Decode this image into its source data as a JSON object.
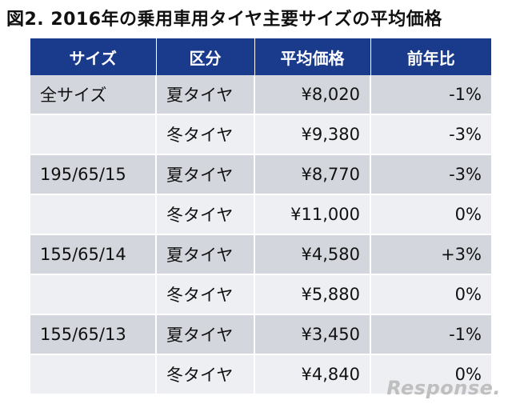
{
  "title": "図2. 2016年の乗用車用タイヤ主要サイズの平均価格",
  "table": {
    "headers": [
      "サイズ",
      "区分",
      "平均価格",
      "前年比"
    ],
    "rows": [
      {
        "size": "全サイズ",
        "kubun": "夏タイヤ",
        "price": "¥8,020",
        "yoy": "-1%"
      },
      {
        "size": "",
        "kubun": "冬タイヤ",
        "price": "¥9,380",
        "yoy": "-3%"
      },
      {
        "size": "195/65/15",
        "kubun": "夏タイヤ",
        "price": "¥8,770",
        "yoy": "-3%"
      },
      {
        "size": "",
        "kubun": "冬タイヤ",
        "price": "¥11,000",
        "yoy": "0%"
      },
      {
        "size": "155/65/14",
        "kubun": "夏タイヤ",
        "price": "¥4,580",
        "yoy": "+3%"
      },
      {
        "size": "",
        "kubun": "冬タイヤ",
        "price": "¥5,880",
        "yoy": "0%"
      },
      {
        "size": "155/65/13",
        "kubun": "夏タイヤ",
        "price": "¥3,450",
        "yoy": "-1%"
      },
      {
        "size": "",
        "kubun": "冬タイヤ",
        "price": "¥4,840",
        "yoy": "0%"
      }
    ]
  },
  "watermark": "Response."
}
